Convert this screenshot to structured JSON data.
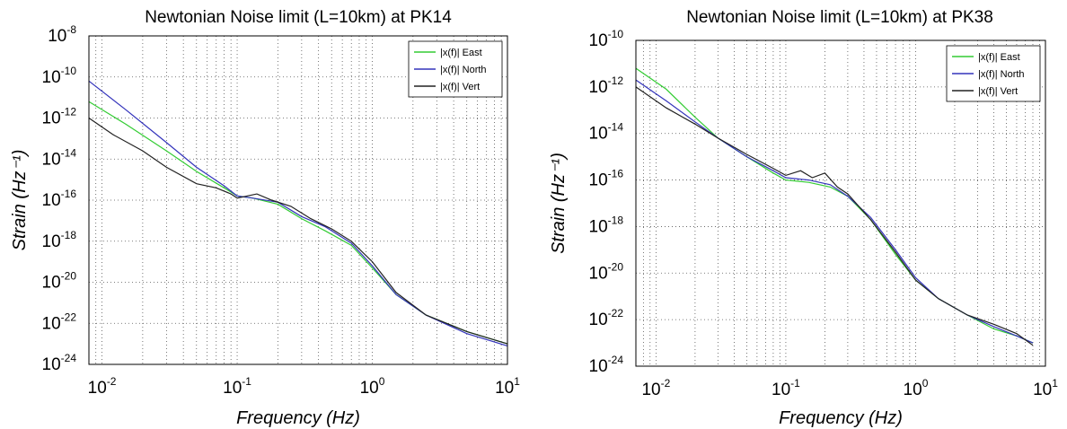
{
  "chart_data": [
    {
      "type": "line",
      "title": "Newtonian Noise limit (L=10km) at PK14",
      "xlabel": "Frequency (Hz)",
      "ylabel": "Strain (Hz⁻¹)",
      "xscale": "log",
      "yscale": "log",
      "xlim": [
        0.008,
        10
      ],
      "ylim": [
        1e-24,
        1e-08
      ],
      "xticks": [
        {
          "value": 0.01,
          "base": "10",
          "exp": "-2"
        },
        {
          "value": 0.1,
          "base": "10",
          "exp": "-1"
        },
        {
          "value": 1,
          "base": "10",
          "exp": "0"
        },
        {
          "value": 10,
          "base": "10",
          "exp": "1"
        }
      ],
      "yticks": [
        {
          "value": -8,
          "base": "10",
          "exp": "-8"
        },
        {
          "value": -10,
          "base": "10",
          "exp": "-10"
        },
        {
          "value": -12,
          "base": "10",
          "exp": "-12"
        },
        {
          "value": -14,
          "base": "10",
          "exp": "-14"
        },
        {
          "value": -16,
          "base": "10",
          "exp": "-16"
        },
        {
          "value": -18,
          "base": "10",
          "exp": "-18"
        },
        {
          "value": -20,
          "base": "10",
          "exp": "-20"
        },
        {
          "value": -22,
          "base": "10",
          "exp": "-22"
        },
        {
          "value": -24,
          "base": "10",
          "exp": "-24"
        }
      ],
      "grid": true,
      "legend_position": "top-right",
      "series": [
        {
          "name": "|x(f)| East",
          "color": "#33cc33",
          "x": [
            0.008,
            0.015,
            0.03,
            0.05,
            0.08,
            0.1,
            0.13,
            0.2,
            0.3,
            0.45,
            0.7,
            1.0,
            1.5,
            2.5,
            5,
            10
          ],
          "y": [
            -11.2,
            -12.3,
            -13.6,
            -14.6,
            -15.4,
            -15.8,
            -15.9,
            -16.2,
            -16.9,
            -17.5,
            -18.2,
            -19.3,
            -20.6,
            -21.6,
            -22.4,
            -23.0
          ]
        },
        {
          "name": "|x(f)| North",
          "color": "#3333bb",
          "x": [
            0.008,
            0.015,
            0.03,
            0.05,
            0.08,
            0.1,
            0.13,
            0.2,
            0.3,
            0.45,
            0.7,
            1.0,
            1.5,
            2.5,
            5,
            10
          ],
          "y": [
            -10.2,
            -11.6,
            -13.2,
            -14.4,
            -15.3,
            -15.8,
            -15.9,
            -16.1,
            -16.8,
            -17.3,
            -18.1,
            -19.2,
            -20.6,
            -21.6,
            -22.5,
            -23.1
          ]
        },
        {
          "name": "|x(f)| Vert",
          "color": "#222222",
          "x": [
            0.008,
            0.012,
            0.02,
            0.03,
            0.05,
            0.07,
            0.09,
            0.1,
            0.14,
            0.18,
            0.25,
            0.35,
            0.5,
            0.7,
            1.0,
            1.5,
            2.5,
            5,
            10
          ],
          "y": [
            -12.0,
            -12.8,
            -13.6,
            -14.4,
            -15.2,
            -15.4,
            -15.7,
            -15.9,
            -15.7,
            -16.0,
            -16.3,
            -16.9,
            -17.4,
            -18.0,
            -19.0,
            -20.5,
            -21.6,
            -22.4,
            -23.0
          ]
        }
      ]
    },
    {
      "type": "line",
      "title": "Newtonian Noise limit (L=10km) at PK38",
      "xlabel": "Frequency (Hz)",
      "ylabel": "Strain (Hz⁻¹)",
      "xscale": "log",
      "yscale": "log",
      "xlim": [
        0.007,
        10
      ],
      "ylim": [
        1e-24,
        1e-10
      ],
      "xticks": [
        {
          "value": 0.01,
          "base": "10",
          "exp": "-2"
        },
        {
          "value": 0.1,
          "base": "10",
          "exp": "-1"
        },
        {
          "value": 1,
          "base": "10",
          "exp": "0"
        },
        {
          "value": 10,
          "base": "10",
          "exp": "1"
        }
      ],
      "yticks": [
        {
          "value": -10,
          "base": "10",
          "exp": "-10"
        },
        {
          "value": -12,
          "base": "10",
          "exp": "-12"
        },
        {
          "value": -14,
          "base": "10",
          "exp": "-14"
        },
        {
          "value": -16,
          "base": "10",
          "exp": "-16"
        },
        {
          "value": -18,
          "base": "10",
          "exp": "-18"
        },
        {
          "value": -20,
          "base": "10",
          "exp": "-20"
        },
        {
          "value": -22,
          "base": "10",
          "exp": "-22"
        },
        {
          "value": -24,
          "base": "10",
          "exp": "-24"
        }
      ],
      "grid": true,
      "legend_position": "top-right",
      "series": [
        {
          "name": "|x(f)| East",
          "color": "#33cc33",
          "x": [
            0.007,
            0.012,
            0.02,
            0.03,
            0.05,
            0.08,
            0.1,
            0.15,
            0.22,
            0.3,
            0.45,
            0.7,
            1.0,
            1.5,
            2.5,
            4,
            6,
            8
          ],
          "y": [
            -11.2,
            -12.1,
            -13.3,
            -14.2,
            -15.0,
            -15.7,
            -16.0,
            -16.1,
            -16.3,
            -16.7,
            -17.7,
            -19.2,
            -20.3,
            -21.1,
            -21.8,
            -22.4,
            -22.7,
            -23.0
          ]
        },
        {
          "name": "|x(f)| North",
          "color": "#3333bb",
          "x": [
            0.007,
            0.012,
            0.02,
            0.03,
            0.05,
            0.08,
            0.1,
            0.15,
            0.22,
            0.3,
            0.45,
            0.7,
            1.0,
            1.5,
            2.5,
            4,
            6,
            8
          ],
          "y": [
            -11.7,
            -12.6,
            -13.5,
            -14.2,
            -15.0,
            -15.6,
            -15.9,
            -16.0,
            -16.2,
            -16.7,
            -17.6,
            -19.0,
            -20.2,
            -21.1,
            -21.8,
            -22.3,
            -22.7,
            -23.0
          ]
        },
        {
          "name": "|x(f)| Vert",
          "color": "#222222",
          "x": [
            0.007,
            0.012,
            0.02,
            0.03,
            0.05,
            0.08,
            0.1,
            0.13,
            0.16,
            0.2,
            0.25,
            0.3,
            0.45,
            0.7,
            1.0,
            1.5,
            2.5,
            4,
            6,
            8
          ],
          "y": [
            -12.0,
            -12.9,
            -13.6,
            -14.2,
            -14.9,
            -15.5,
            -15.8,
            -15.6,
            -15.9,
            -15.7,
            -16.3,
            -16.6,
            -17.7,
            -19.1,
            -20.3,
            -21.1,
            -21.8,
            -22.2,
            -22.6,
            -23.1
          ]
        }
      ]
    }
  ]
}
